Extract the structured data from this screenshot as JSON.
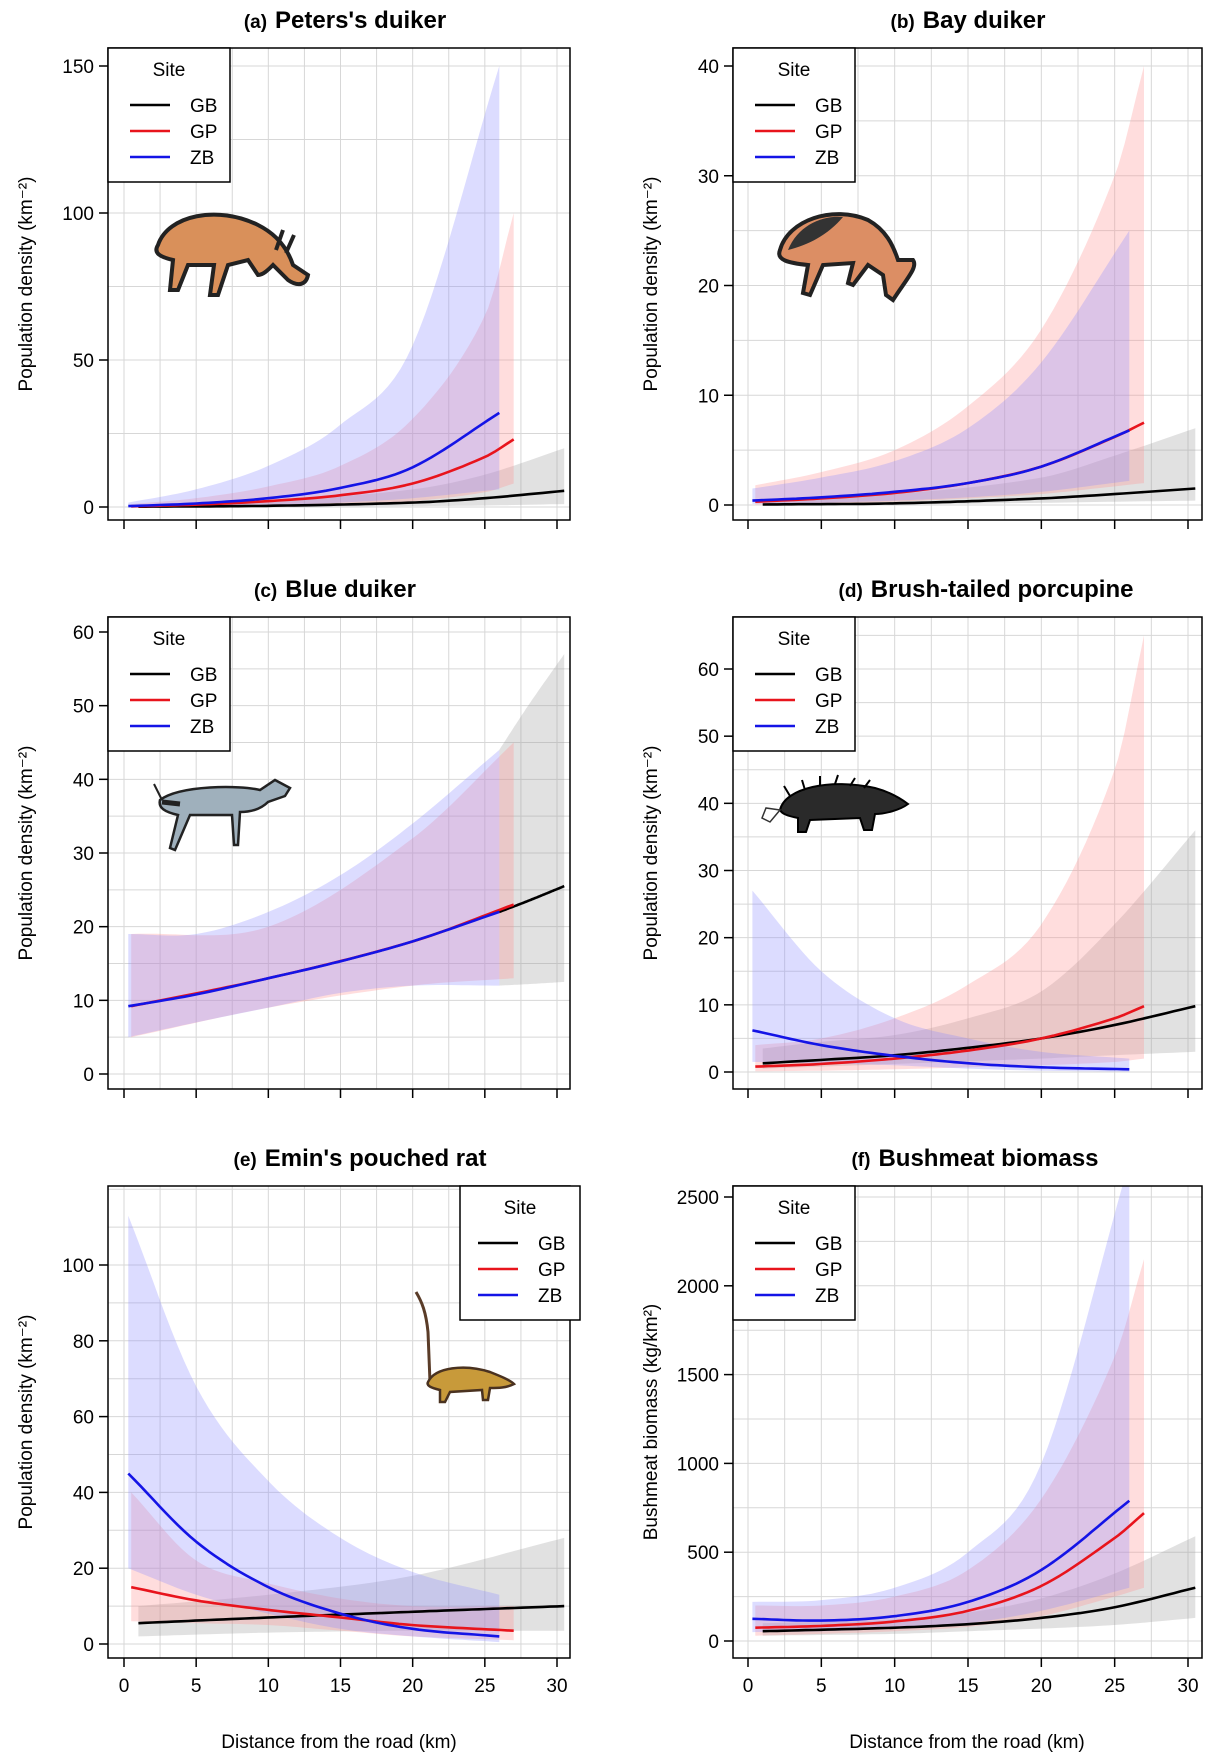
{
  "figure": {
    "xlabel": "Distance from the road (km)",
    "legend_title": "Site",
    "colors": {
      "GB": "#000000",
      "GP": "#e8141c",
      "ZB": "#1414e6"
    },
    "band_colors": {
      "GB": "#9a9a9a",
      "GP": "#ff9090",
      "ZB": "#8a8aff"
    }
  },
  "chart_data": [
    {
      "type": "line",
      "panel": "(a)",
      "title": "Peters's duiker",
      "ylabel": "Population  density  (km⁻²)",
      "xlim": [
        0,
        30
      ],
      "ylim": [
        0,
        150
      ],
      "xticks": [
        0,
        5,
        10,
        15,
        20,
        25,
        30
      ],
      "yticks": [
        0,
        50,
        100,
        150
      ],
      "x_tick_labels_shown": false,
      "legend_position": "top-left",
      "icon": "peters-duiker-icon",
      "series": [
        {
          "name": "GB",
          "x": [
            1,
            10,
            20,
            25,
            30.5
          ],
          "y": [
            0.1,
            0.4,
            1.5,
            3.0,
            5.5
          ],
          "lower": [
            0.03,
            0.1,
            0.3,
            0.5,
            1.0
          ],
          "upper": [
            0.5,
            2,
            6,
            11,
            20
          ]
        },
        {
          "name": "GP",
          "x": [
            0.5,
            5,
            10,
            15,
            20,
            25,
            27
          ],
          "y": [
            0.2,
            0.8,
            2.0,
            4.0,
            8.0,
            17,
            23
          ],
          "lower": [
            0.05,
            0.2,
            0.5,
            1.0,
            2.0,
            5,
            8
          ],
          "upper": [
            1,
            3,
            7,
            14,
            30,
            65,
            100
          ]
        },
        {
          "name": "ZB",
          "x": [
            0.3,
            5,
            10,
            15,
            20,
            26
          ],
          "y": [
            0.3,
            1.2,
            3.0,
            6.5,
            13.5,
            32
          ],
          "lower": [
            0.05,
            0.2,
            0.6,
            1.5,
            3,
            6
          ],
          "upper": [
            1.5,
            6,
            14,
            28,
            55,
            150
          ]
        }
      ]
    },
    {
      "type": "line",
      "panel": "(b)",
      "title": "Bay duiker",
      "ylabel": "Population  density  (km⁻²)",
      "xlim": [
        0,
        30
      ],
      "ylim": [
        0,
        40
      ],
      "xticks": [
        0,
        5,
        10,
        15,
        20,
        25,
        30
      ],
      "yticks": [
        0,
        10,
        20,
        30,
        40
      ],
      "x_tick_labels_shown": false,
      "legend_position": "top-left",
      "icon": "bay-duiker-icon",
      "series": [
        {
          "name": "GB",
          "x": [
            1,
            10,
            20,
            25,
            30.5
          ],
          "y": [
            0.05,
            0.15,
            0.6,
            1.0,
            1.5
          ],
          "lower": [
            0.01,
            0.05,
            0.2,
            0.3,
            0.4
          ],
          "upper": [
            0.5,
            1,
            2.5,
            4.5,
            7
          ]
        },
        {
          "name": "GP",
          "x": [
            0.5,
            5,
            10,
            15,
            20,
            25,
            27
          ],
          "y": [
            0.3,
            0.6,
            1.1,
            2.0,
            3.5,
            6.2,
            7.5
          ],
          "lower": [
            0.05,
            0.1,
            0.3,
            0.6,
            1.0,
            1.7,
            2.0
          ],
          "upper": [
            1.8,
            3,
            5,
            9,
            16,
            30,
            40
          ]
        },
        {
          "name": "ZB",
          "x": [
            0.3,
            5,
            10,
            15,
            20,
            26
          ],
          "y": [
            0.4,
            0.7,
            1.2,
            2.0,
            3.5,
            6.8
          ],
          "lower": [
            0.1,
            0.2,
            0.4,
            0.7,
            1.2,
            2.2
          ],
          "upper": [
            1.5,
            2.5,
            4,
            7,
            13,
            25
          ]
        }
      ]
    },
    {
      "type": "line",
      "panel": "(c)",
      "title": "Blue duiker",
      "ylabel": "Population  density  (km⁻²)",
      "xlim": [
        0,
        30
      ],
      "ylim": [
        0,
        60
      ],
      "xticks": [
        0,
        5,
        10,
        15,
        20,
        25,
        30
      ],
      "yticks": [
        0,
        10,
        20,
        30,
        40,
        50,
        60
      ],
      "x_tick_labels_shown": false,
      "legend_position": "top-left",
      "icon": "blue-duiker-icon",
      "series": [
        {
          "name": "GB",
          "x": [
            26,
            28,
            30.5
          ],
          "y": [
            22,
            23.5,
            25.5
          ],
          "lower": [
            12,
            12.2,
            12.5
          ],
          "upper": [
            44,
            50,
            57
          ]
        },
        {
          "name": "GP",
          "x": [
            0.5,
            10,
            20,
            27
          ],
          "y": [
            9.2,
            13,
            18,
            23
          ],
          "lower": [
            5,
            9,
            12,
            13
          ],
          "upper": [
            19,
            20,
            32,
            45
          ]
        },
        {
          "name": "ZB",
          "x": [
            0.3,
            5,
            10,
            15,
            20,
            26
          ],
          "y": [
            9.2,
            10.8,
            13,
            15.3,
            18,
            22
          ],
          "lower": [
            5,
            7,
            9,
            11,
            12,
            12
          ],
          "upper": [
            19,
            19,
            22,
            27,
            34,
            44
          ]
        }
      ]
    },
    {
      "type": "line",
      "panel": "(d)",
      "title": "Brush-tailed porcupine",
      "ylabel": "Population  density  (km⁻²)",
      "xlim": [
        0,
        30
      ],
      "ylim": [
        0,
        60
      ],
      "xticks": [
        0,
        5,
        10,
        15,
        20,
        25,
        30
      ],
      "yticks": [
        0,
        10,
        20,
        30,
        40,
        50,
        60
      ],
      "x_tick_labels_shown": false,
      "legend_position": "top-left",
      "icon": "porcupine-icon",
      "series": [
        {
          "name": "GB",
          "x": [
            1,
            5,
            10,
            15,
            20,
            25,
            30.5
          ],
          "y": [
            1.3,
            1.8,
            2.5,
            3.6,
            5.0,
            7.0,
            9.8
          ],
          "lower": [
            0.5,
            0.8,
            1.2,
            1.6,
            2.0,
            2.5,
            3.0
          ],
          "upper": [
            3.5,
            4.5,
            5.5,
            8,
            12,
            22,
            36
          ]
        },
        {
          "name": "GP",
          "x": [
            0.5,
            5,
            10,
            15,
            20,
            25,
            27
          ],
          "y": [
            0.8,
            1.2,
            2.0,
            3.2,
            5.0,
            8.0,
            9.8
          ],
          "lower": [
            0.1,
            0.2,
            0.4,
            0.7,
            1.0,
            1.5,
            2.0
          ],
          "upper": [
            4,
            5,
            8,
            13,
            22,
            45,
            65
          ]
        },
        {
          "name": "ZB",
          "x": [
            0.3,
            5,
            10,
            15,
            20,
            26
          ],
          "y": [
            6.2,
            4.0,
            2.4,
            1.3,
            0.7,
            0.4
          ],
          "lower": [
            1.5,
            1.3,
            1.0,
            0.5,
            0.2,
            0.05
          ],
          "upper": [
            27,
            15,
            8,
            5,
            3,
            2
          ]
        }
      ]
    },
    {
      "type": "line",
      "panel": "(e)",
      "title": "Emin's pouched rat",
      "ylabel": "Population  density  (km⁻²)",
      "xlim": [
        0,
        30
      ],
      "ylim": [
        0,
        110
      ],
      "xticks": [
        0,
        5,
        10,
        15,
        20,
        25,
        30
      ],
      "yticks": [
        0,
        20,
        40,
        60,
        80,
        100
      ],
      "legend_position": "top-right",
      "icon": "pouched-rat-icon",
      "series": [
        {
          "name": "GB",
          "x": [
            1,
            10,
            20,
            30.5
          ],
          "y": [
            5.5,
            7,
            8.5,
            10
          ],
          "lower": [
            2,
            3,
            3.5,
            3.5
          ],
          "upper": [
            10,
            13,
            18,
            28
          ]
        },
        {
          "name": "GP",
          "x": [
            0.5,
            5,
            10,
            15,
            20,
            27
          ],
          "y": [
            15,
            11.5,
            9,
            7,
            5,
            3.5
          ],
          "lower": [
            6,
            5.5,
            5,
            3.5,
            2,
            1
          ],
          "upper": [
            40,
            22,
            16,
            12,
            10,
            10
          ]
        },
        {
          "name": "ZB",
          "x": [
            0.3,
            5,
            10,
            15,
            20,
            26
          ],
          "y": [
            45,
            27,
            15,
            8,
            4,
            2
          ],
          "lower": [
            20,
            13,
            8,
            4,
            2,
            0.5
          ],
          "upper": [
            113,
            68,
            43,
            28,
            19,
            13
          ]
        }
      ]
    },
    {
      "type": "line",
      "panel": "(f)",
      "title": "Bushmeat biomass",
      "ylabel": "Bushmeat  biomass  (kg/km²)",
      "xlim": [
        0,
        30
      ],
      "ylim": [
        0,
        2600
      ],
      "xticks": [
        0,
        5,
        10,
        15,
        20,
        25,
        30
      ],
      "yticks": [
        0,
        500,
        1000,
        1500,
        2000,
        2500
      ],
      "legend_position": "top-left",
      "series": [
        {
          "name": "GB",
          "x": [
            1,
            10,
            15,
            20,
            25,
            30.5
          ],
          "y": [
            55,
            75,
            95,
            130,
            190,
            300
          ],
          "lower": [
            30,
            40,
            55,
            70,
            90,
            130
          ],
          "upper": [
            100,
            120,
            160,
            240,
            380,
            590
          ]
        },
        {
          "name": "GP",
          "x": [
            0.5,
            5,
            10,
            15,
            20,
            25,
            27
          ],
          "y": [
            75,
            85,
            110,
            170,
            310,
            580,
            720
          ],
          "lower": [
            30,
            40,
            55,
            80,
            140,
            250,
            300
          ],
          "upper": [
            200,
            200,
            250,
            400,
            800,
            1600,
            2150
          ]
        },
        {
          "name": "ZB",
          "x": [
            0.3,
            5,
            10,
            15,
            20,
            26
          ],
          "y": [
            125,
            115,
            140,
            220,
            400,
            790
          ],
          "lower": [
            50,
            55,
            70,
            100,
            170,
            300
          ],
          "upper": [
            220,
            230,
            300,
            500,
            1000,
            2700
          ]
        }
      ]
    }
  ]
}
